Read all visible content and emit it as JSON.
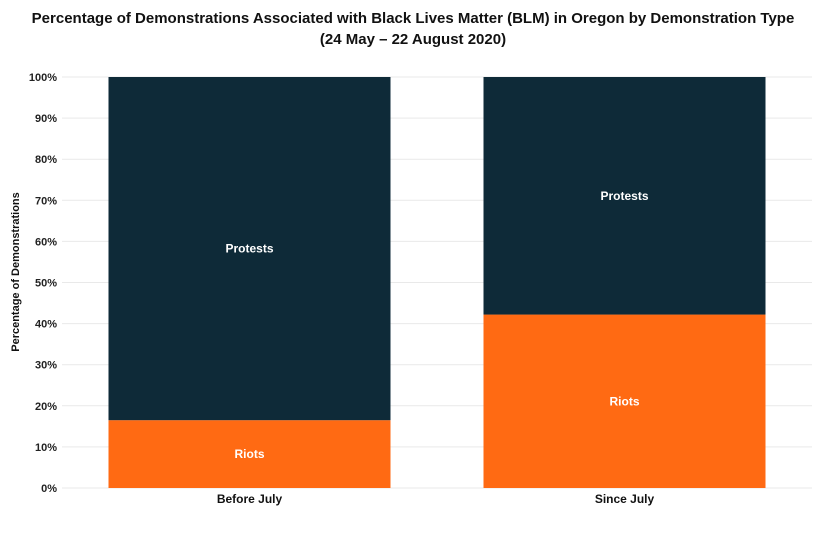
{
  "chart_data": {
    "type": "bar",
    "stacked": true,
    "title": "Percentage of Demonstrations Associated with Black Lives Matter (BLM) in Oregon by Demonstration Type",
    "subtitle": "(24 May – 22 August 2020)",
    "xlabel": "",
    "ylabel": "Percentage of Demonstrations",
    "ylim": [
      0,
      100
    ],
    "yticks": [
      0,
      10,
      20,
      30,
      40,
      50,
      60,
      70,
      80,
      90,
      100
    ],
    "ytick_suffix": "%",
    "grid": true,
    "categories": [
      "Before July",
      "Since July"
    ],
    "series": [
      {
        "name": "Riots",
        "color": "#ff6a13",
        "values": [
          16.5,
          42.2
        ]
      },
      {
        "name": "Protests",
        "color": "#0e2a38",
        "values": [
          83.5,
          57.8
        ]
      }
    ]
  }
}
